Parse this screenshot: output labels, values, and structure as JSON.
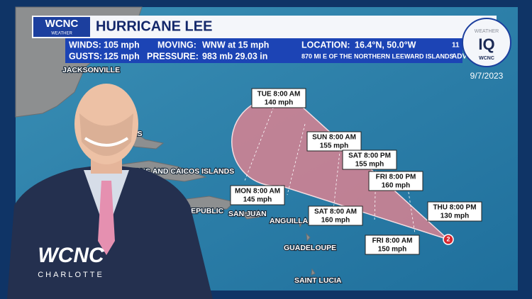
{
  "header": {
    "logo": "WCNC",
    "logo_sub": "WEATHER",
    "title": "HURRICANE LEE"
  },
  "stats": {
    "winds_label": "WINDS:",
    "winds": "105 mph",
    "moving_label": "MOVING:",
    "moving": "WNW at 15 mph",
    "location_label": "LOCATION:",
    "location": "16.4°N, 50.0°W",
    "gusts_label": "GUSTS:",
    "gusts": "125 mph",
    "pressure_label": "PRESSURE:",
    "pressure": "983 mb 29.03 in",
    "distance": "870 MI E OF THE NORTHERN LEEWARD ISLANDS",
    "advisory_number": "11",
    "advisory_label": "ADV"
  },
  "badge": {
    "top": "WEATHER",
    "main": "IQ",
    "logo": "WCNC",
    "date": "9/7/2023"
  },
  "map": {
    "storm_marker": "2",
    "labels": [
      "JACKSONVILLE",
      "AS",
      "TURKS AND CAICOS ISLANDS",
      "ICAN REPUBLIC",
      "SAN JUAN",
      "ANGUILLA",
      "GUADELOUPE",
      "SAINT LUCIA"
    ],
    "forecast": [
      {
        "time": "TUE 8:00 AM",
        "wind": "140 mph"
      },
      {
        "time": "SUN 8:00 AM",
        "wind": "155 mph"
      },
      {
        "time": "SAT 8:00 PM",
        "wind": "155 mph"
      },
      {
        "time": "FRI 8:00 PM",
        "wind": "160 mph"
      },
      {
        "time": "MON 8:00 AM",
        "wind": "145 mph"
      },
      {
        "time": "SAT 8:00 AM",
        "wind": "160 mph"
      },
      {
        "time": "THU 8:00 PM",
        "wind": "130 mph"
      },
      {
        "time": "FRI 8:00 AM",
        "wind": "150 mph"
      }
    ]
  },
  "station": {
    "logo": "WCNC",
    "city": "CHARLOTTE"
  }
}
